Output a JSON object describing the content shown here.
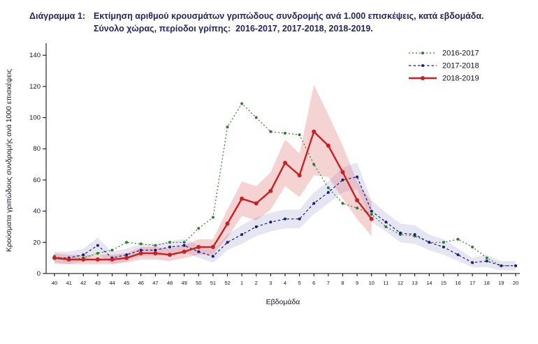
{
  "title": {
    "label": "Διάγραμμα 1:",
    "line1": "Εκτίμηση αριθμού κρουσμάτων γριπώδους συνδρομής ανά 1.000 επισκέψεις, κατά εβδομάδα.",
    "line2": "Σύνολο χώρας, περίοδοι γρίπης:  2016-2017, 2017-2018, 2018-2019."
  },
  "colors": {
    "title_text": "#23265f",
    "axis_text": "#15152a",
    "axis_line": "#000000"
  },
  "chart_data": {
    "type": "line",
    "title": "",
    "xlabel": "Εβδομάδα",
    "ylabel": "Κρούσματα γριπώδους συνδρομής ανά 1000 επισκέψεις",
    "x_ticks": [
      "40",
      "41",
      "42",
      "43",
      "44",
      "45",
      "46",
      "47",
      "48",
      "49",
      "50",
      "51",
      "52",
      "1",
      "2",
      "3",
      "4",
      "5",
      "6",
      "7",
      "8",
      "9",
      "10",
      "11",
      "12",
      "13",
      "14",
      "15",
      "16",
      "17",
      "18",
      "19",
      "20"
    ],
    "y_ticks": [
      0,
      20,
      40,
      60,
      80,
      100,
      120,
      140
    ],
    "ylim": [
      0,
      145
    ],
    "grid": false,
    "legend_position": "top-right",
    "series": [
      {
        "name": "2016-2017",
        "color": "#2e7d2e",
        "style": "dotted",
        "marker_r": 2,
        "line_width": 1.2,
        "values": [
          11,
          9,
          10,
          13,
          15,
          20,
          19,
          18,
          20,
          20,
          29,
          36,
          94,
          109,
          100,
          91,
          90,
          89,
          70,
          55,
          45,
          42,
          38,
          30,
          25,
          24,
          20,
          20,
          22,
          17,
          10,
          5,
          5
        ]
      },
      {
        "name": "2017-2018",
        "color": "#1a1a7a",
        "style": "dashed",
        "marker_r": 2,
        "line_width": 1.2,
        "values": [
          10,
          10,
          12,
          18,
          10,
          12,
          15,
          15,
          17,
          18,
          14,
          11,
          20,
          25,
          30,
          33,
          35,
          35,
          45,
          52,
          60,
          62,
          40,
          33,
          26,
          25,
          20,
          17,
          12,
          7,
          8,
          5,
          5
        ],
        "band_lower": [
          6,
          6,
          8,
          13,
          6,
          8,
          11,
          11,
          13,
          14,
          10,
          7,
          15,
          19,
          24,
          27,
          29,
          29,
          38,
          45,
          52,
          54,
          33,
          27,
          20,
          19,
          15,
          12,
          8,
          4,
          4,
          2,
          2
        ],
        "band_upper": [
          14,
          14,
          16,
          23,
          14,
          16,
          19,
          19,
          21,
          22,
          18,
          15,
          25,
          31,
          36,
          39,
          41,
          41,
          52,
          59,
          68,
          71,
          47,
          39,
          32,
          31,
          25,
          22,
          16,
          10,
          12,
          8,
          8
        ],
        "band_color": "rgba(130,130,195,0.20)"
      },
      {
        "name": "2018-2019",
        "color": "#cc1f1f",
        "style": "solid",
        "marker_r": 3,
        "line_width": 2.4,
        "values": [
          10,
          9,
          9,
          9,
          9,
          10,
          13,
          13,
          12,
          14,
          17,
          17,
          32,
          48,
          45,
          53,
          71,
          63,
          91,
          82,
          65,
          47,
          35
        ],
        "band_lower": [
          7,
          6,
          6,
          6,
          6,
          7,
          9,
          9,
          8,
          10,
          12,
          12,
          23,
          37,
          34,
          41,
          56,
          49,
          63,
          62,
          48,
          35,
          24
        ],
        "band_upper": [
          13,
          12,
          12,
          12,
          12,
          13,
          17,
          17,
          16,
          18,
          22,
          22,
          41,
          59,
          56,
          65,
          86,
          77,
          121,
          102,
          82,
          59,
          46
        ],
        "band_color": "rgba(225,110,110,0.30)"
      }
    ]
  }
}
